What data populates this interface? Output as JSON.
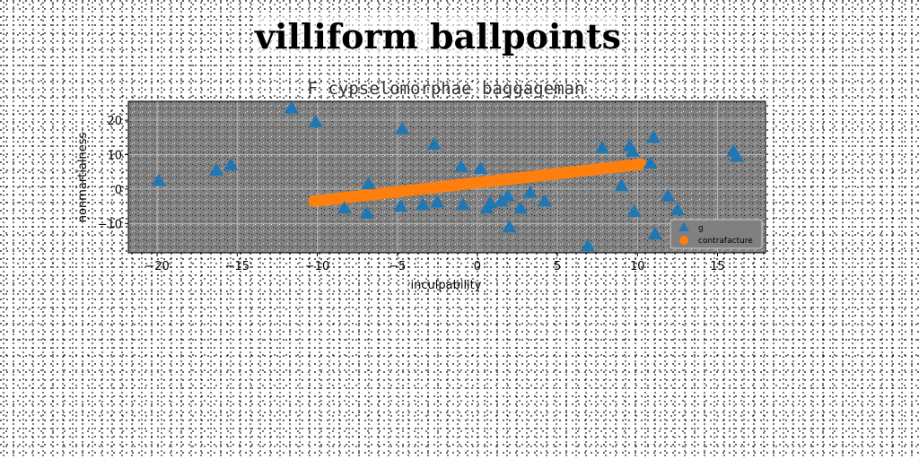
{
  "page": {
    "title": "villiform ballpoints"
  },
  "chart_data": {
    "type": "scatter",
    "title": "F cypselomorphae baggageman",
    "xlabel": "inculpability",
    "ylabel": "nonmartialness",
    "xlim": [
      -21.8,
      18.0
    ],
    "ylim": [
      -18.5,
      25.5
    ],
    "xticks": [
      -20,
      -15,
      -10,
      -5,
      0,
      5,
      10,
      15
    ],
    "yticks": [
      -10,
      0,
      10,
      20
    ],
    "grid": true,
    "legend_position": "lower-right",
    "background": "#808080",
    "series": [
      {
        "name": "g",
        "marker": "triangle",
        "color": "#1f77b4",
        "points": [
          [
            -11.6,
            23.5
          ],
          [
            -10.1,
            19.5
          ],
          [
            -4.7,
            17.5
          ],
          [
            -2.7,
            13.0
          ],
          [
            -15.4,
            7.0
          ],
          [
            -16.3,
            5.5
          ],
          [
            -19.9,
            2.5
          ],
          [
            -8.3,
            -5.5
          ],
          [
            -6.9,
            -7.0
          ],
          [
            -4.8,
            -5.0
          ],
          [
            -3.4,
            -4.5
          ],
          [
            -2.5,
            -3.8
          ],
          [
            -1.0,
            6.5
          ],
          [
            0.2,
            6.0
          ],
          [
            -0.9,
            -4.5
          ],
          [
            0.6,
            -5.5
          ],
          [
            0.8,
            -4.0
          ],
          [
            1.5,
            -3.5
          ],
          [
            1.9,
            -2.0
          ],
          [
            2.7,
            -5.5
          ],
          [
            3.3,
            -1.0
          ],
          [
            4.2,
            -3.5
          ],
          [
            2.0,
            -11.0
          ],
          [
            6.9,
            -16.5
          ],
          [
            7.8,
            12.0
          ],
          [
            9.5,
            12.5
          ],
          [
            9.7,
            11.0
          ],
          [
            11.0,
            15.0
          ],
          [
            10.8,
            7.5
          ],
          [
            9.0,
            1.0
          ],
          [
            9.8,
            -6.5
          ],
          [
            11.9,
            -2.0
          ],
          [
            12.5,
            -6.0
          ],
          [
            11.1,
            -13.0
          ],
          [
            16.0,
            11.0
          ],
          [
            16.2,
            9.5
          ],
          [
            -6.8,
            1.5
          ]
        ]
      },
      {
        "name": "contrafacture",
        "marker": "circle",
        "color": "#ff7f0e",
        "line_from": [
          -10.2,
          -3.5
        ],
        "line_to": [
          10.2,
          7.2
        ],
        "count": 120
      }
    ]
  }
}
